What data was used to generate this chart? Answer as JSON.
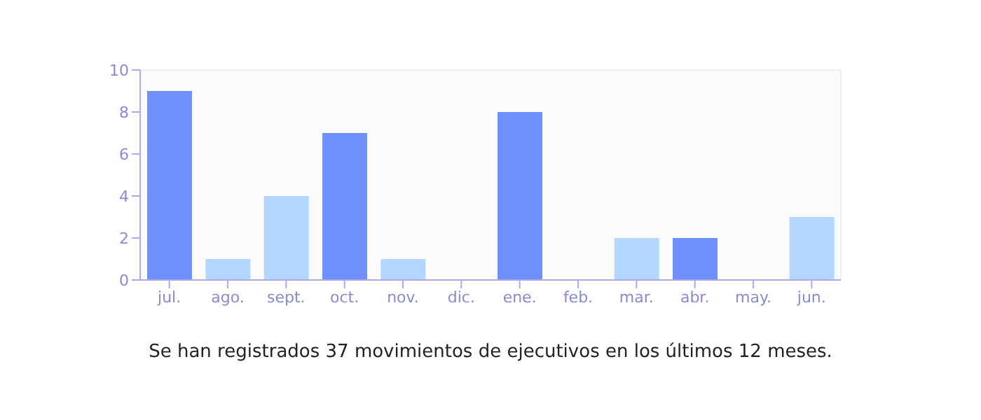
{
  "chart_data": {
    "type": "bar",
    "categories": [
      "jul.",
      "ago.",
      "sept.",
      "oct.",
      "nov.",
      "dic.",
      "ene.",
      "feb.",
      "mar.",
      "abr.",
      "may.",
      "jun."
    ],
    "values": [
      9,
      1,
      4,
      7,
      1,
      0,
      8,
      0,
      2,
      2,
      0,
      3
    ],
    "colors": [
      "#6f8fff",
      "#b3d7ff",
      "#b3d7ff",
      "#6f8fff",
      "#b3d7ff",
      "#b3d7ff",
      "#6f8fff",
      "#b3d7ff",
      "#b3d7ff",
      "#6f8fff",
      "#b3d7ff",
      "#b3d7ff"
    ],
    "ylim": [
      0,
      10
    ],
    "yticks": [
      0,
      2,
      4,
      6,
      8,
      10
    ],
    "annotations": [
      "Se han registrados 37 movimientos de ejecutivos en los últimos 12 meses."
    ]
  }
}
